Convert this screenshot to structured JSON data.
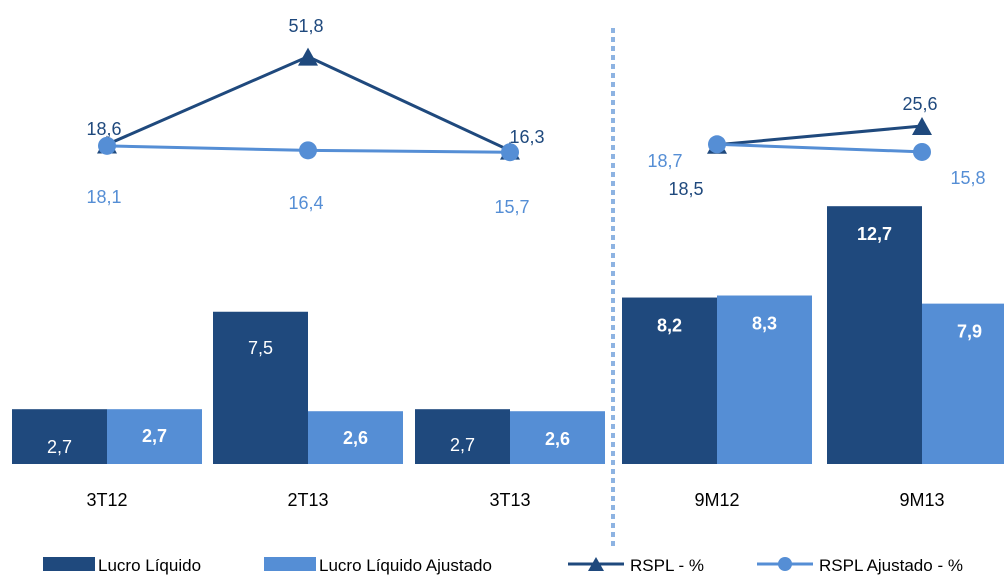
{
  "chart_data": {
    "type": "bar",
    "categories": [
      "3T12",
      "2T13",
      "3T13",
      "9M12",
      "9M13"
    ],
    "series": [
      {
        "name": "Lucro Líquido",
        "kind": "bar",
        "values": [
          2.7,
          7.5,
          2.7,
          8.2,
          12.7
        ],
        "labels": [
          "2,7",
          "7,5",
          "2,7",
          "8,2",
          "12,7"
        ],
        "color": "#1F497D"
      },
      {
        "name": "Lucro Líquido Ajustado",
        "kind": "bar",
        "values": [
          2.7,
          2.6,
          2.6,
          8.3,
          7.9
        ],
        "labels": [
          "2,7",
          "2,6",
          "2,6",
          "8,3",
          "7,9"
        ],
        "color": "#558ED5"
      },
      {
        "name": "RSPL - %",
        "kind": "line",
        "marker": "triangle",
        "values": [
          18.6,
          51.8,
          16.3,
          18.5,
          25.6
        ],
        "labels": [
          "18,6",
          "51,8",
          "16,3",
          "18,5",
          "25,6"
        ],
        "color": "#1F497D"
      },
      {
        "name": "RSPL Ajustado - %",
        "kind": "line",
        "marker": "circle",
        "values": [
          18.1,
          16.4,
          15.7,
          18.7,
          15.8
        ],
        "labels": [
          "18,1",
          "16,4",
          "15,7",
          "18,7",
          "15,8"
        ],
        "color": "#558ED5"
      }
    ],
    "line_groups": [
      [
        0,
        1,
        2
      ],
      [
        3,
        4
      ]
    ],
    "separator_after_category": 2,
    "legend_position": "bottom",
    "grid": false
  }
}
